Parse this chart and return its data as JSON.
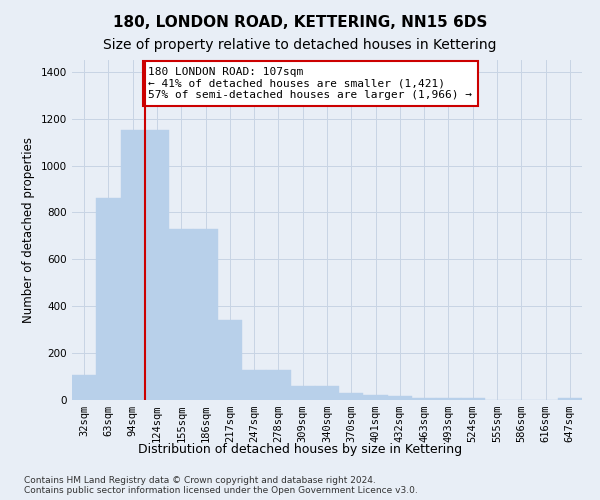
{
  "title": "180, LONDON ROAD, KETTERING, NN15 6DS",
  "subtitle": "Size of property relative to detached houses in Kettering",
  "xlabel": "Distribution of detached houses by size in Kettering",
  "ylabel": "Number of detached properties",
  "categories": [
    "32sqm",
    "63sqm",
    "94sqm",
    "124sqm",
    "155sqm",
    "186sqm",
    "217sqm",
    "247sqm",
    "278sqm",
    "309sqm",
    "340sqm",
    "370sqm",
    "401sqm",
    "432sqm",
    "463sqm",
    "493sqm",
    "524sqm",
    "555sqm",
    "586sqm",
    "616sqm",
    "647sqm"
  ],
  "values": [
    105,
    860,
    1150,
    1150,
    730,
    730,
    340,
    130,
    130,
    60,
    60,
    30,
    20,
    15,
    10,
    10,
    10,
    0,
    0,
    0,
    10
  ],
  "bar_color": "#b8d0ea",
  "bar_edge_color": "#b8d0ea",
  "grid_color": "#c8d4e4",
  "background_color": "#e8eef6",
  "vline_x": 2.5,
  "vline_color": "#cc0000",
  "annotation_text": "180 LONDON ROAD: 107sqm\n← 41% of detached houses are smaller (1,421)\n57% of semi-detached houses are larger (1,966) →",
  "annotation_box_color": "#ffffff",
  "annotation_border_color": "#cc0000",
  "footnote": "Contains HM Land Registry data © Crown copyright and database right 2024.\nContains public sector information licensed under the Open Government Licence v3.0.",
  "ylim": [
    0,
    1450
  ],
  "title_fontsize": 11,
  "subtitle_fontsize": 10,
  "xlabel_fontsize": 9,
  "ylabel_fontsize": 8.5,
  "tick_fontsize": 7.5,
  "annotation_fontsize": 8,
  "footnote_fontsize": 6.5
}
